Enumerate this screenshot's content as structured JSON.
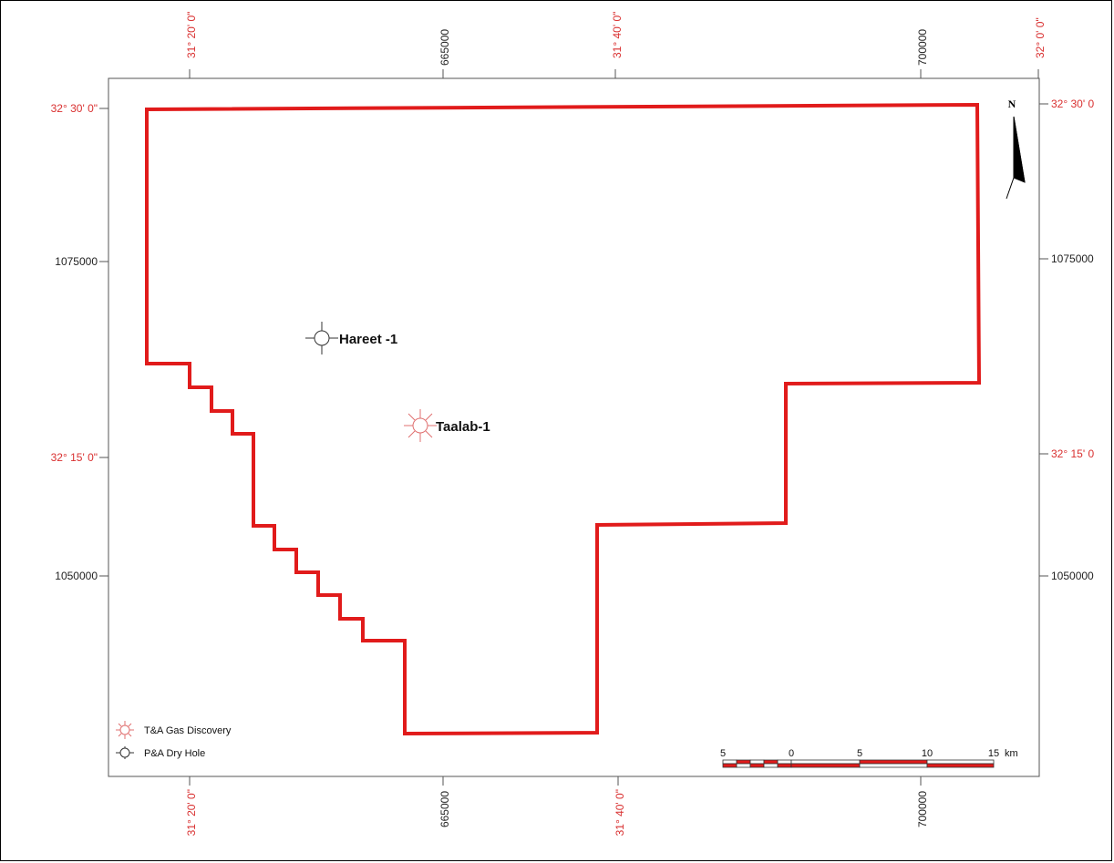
{
  "map": {
    "north_label": "N",
    "accent_color": "#e11b1b",
    "graticule_color": "#d93030",
    "top_labels": [
      {
        "text": "31° 20' 0\"",
        "color": "red"
      },
      {
        "text": "665000",
        "color": "black"
      },
      {
        "text": "31° 40' 0\"",
        "color": "red"
      },
      {
        "text": "700000",
        "color": "black"
      },
      {
        "text": "32° 0' 0\"",
        "color": "red"
      }
    ],
    "bottom_labels": [
      {
        "text": "31° 20' 0\"",
        "color": "red"
      },
      {
        "text": "665000",
        "color": "black"
      },
      {
        "text": "31° 40' 0\"",
        "color": "red"
      },
      {
        "text": "700000",
        "color": "black"
      }
    ],
    "left_labels": [
      {
        "text": "32° 30' 0\"",
        "color": "red"
      },
      {
        "text": "1075000",
        "color": "black"
      },
      {
        "text": "32° 15' 0\"",
        "color": "red"
      },
      {
        "text": "1050000",
        "color": "black"
      }
    ],
    "right_labels": [
      {
        "text": "32° 30' 0",
        "color": "red"
      },
      {
        "text": "1075000",
        "color": "black"
      },
      {
        "text": "32° 15' 0",
        "color": "red"
      },
      {
        "text": "1050000",
        "color": "black"
      }
    ],
    "wells": [
      {
        "name": "Hareet -1",
        "type": "dry-hole"
      },
      {
        "name": "Taalab-1",
        "type": "gas-discovery"
      }
    ],
    "legend": {
      "gas": "T&A Gas Discovery",
      "dry": "P&A Dry Hole"
    },
    "scale_bar": {
      "labels": [
        "5",
        "0",
        "5",
        "10",
        "15"
      ],
      "unit": "km"
    }
  }
}
